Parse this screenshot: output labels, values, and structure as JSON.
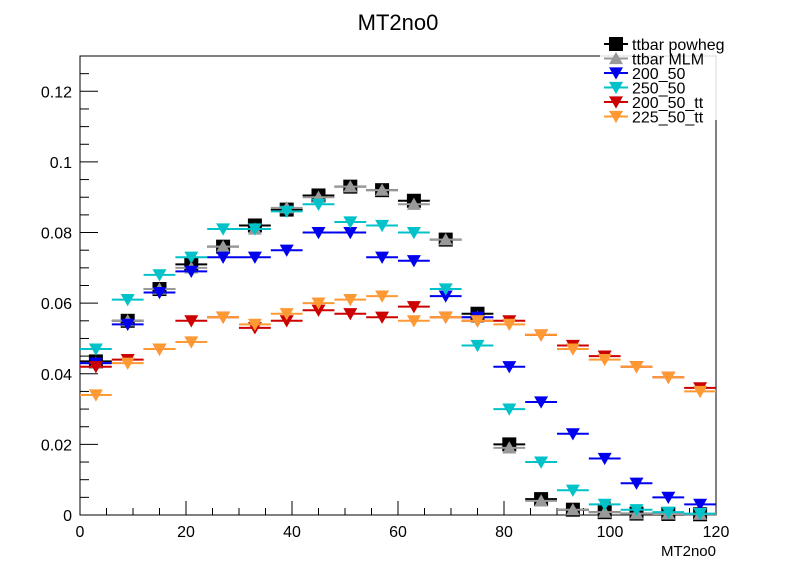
{
  "chart_data": {
    "type": "scatter",
    "title": "MT2no0",
    "xlabel": "MT2no0",
    "ylabel": "",
    "xlim": [
      0,
      120
    ],
    "ylim": [
      0,
      0.13
    ],
    "x_ticks": [
      0,
      20,
      40,
      60,
      80,
      100,
      120
    ],
    "y_ticks": [
      0,
      0.02,
      0.04,
      0.06,
      0.08,
      0.1,
      0.12
    ],
    "x_tick_labels": [
      "0",
      "20",
      "40",
      "60",
      "80",
      "100",
      "120"
    ],
    "y_tick_labels": [
      "0",
      "0.02",
      "0.04",
      "0.06",
      "0.08",
      "0.1",
      "0.12"
    ],
    "bin_width": 6,
    "x": [
      3,
      9,
      15,
      21,
      27,
      33,
      39,
      45,
      51,
      57,
      63,
      69,
      75,
      81,
      87,
      93,
      99,
      105,
      111,
      117
    ],
    "legend_position": "top-right",
    "series": [
      {
        "name": "ttbar powheg",
        "marker": "square",
        "color": "#000000",
        "values": [
          0.0435,
          0.055,
          0.064,
          0.071,
          0.076,
          0.082,
          0.0865,
          0.0905,
          0.093,
          0.092,
          0.089,
          0.078,
          0.057,
          0.02,
          0.0045,
          0.0015,
          0.0008,
          0.0004,
          0.0003,
          0.0002
        ]
      },
      {
        "name": "ttbar MLM",
        "marker": "triangle-up",
        "color": "#999999",
        "values": [
          0.043,
          0.055,
          0.064,
          0.07,
          0.076,
          0.081,
          0.087,
          0.09,
          0.093,
          0.092,
          0.088,
          0.078,
          0.056,
          0.019,
          0.004,
          0.0015,
          0.0008,
          0.0004,
          0.0003,
          0.0002
        ]
      },
      {
        "name": "200_50",
        "marker": "triangle-down",
        "color": "#0000ee",
        "values": [
          0.043,
          0.054,
          0.063,
          0.069,
          0.073,
          0.073,
          0.075,
          0.08,
          0.08,
          0.073,
          0.072,
          0.062,
          0.056,
          0.042,
          0.032,
          0.023,
          0.016,
          0.009,
          0.005,
          0.003
        ]
      },
      {
        "name": "250_50",
        "marker": "triangle-down",
        "color": "#00c2c8",
        "values": [
          0.047,
          0.061,
          0.068,
          0.073,
          0.081,
          0.081,
          0.086,
          0.088,
          0.083,
          0.082,
          0.08,
          0.064,
          0.048,
          0.03,
          0.015,
          0.007,
          0.003,
          0.0015,
          0.0008,
          0.0004
        ]
      },
      {
        "name": "200_50_tt",
        "marker": "triangle-down",
        "color": "#cc0000",
        "values": [
          0.042,
          0.044,
          0.047,
          0.055,
          0.056,
          0.053,
          0.055,
          0.058,
          0.057,
          0.056,
          0.059,
          0.056,
          0.055,
          0.055,
          0.051,
          0.048,
          0.045,
          0.042,
          0.039,
          0.036
        ]
      },
      {
        "name": "225_50_tt",
        "marker": "triangle-down",
        "color": "#ff9933",
        "values": [
          0.034,
          0.043,
          0.047,
          0.049,
          0.056,
          0.054,
          0.057,
          0.06,
          0.061,
          0.062,
          0.055,
          0.056,
          0.055,
          0.054,
          0.051,
          0.047,
          0.044,
          0.042,
          0.039,
          0.035
        ]
      }
    ]
  }
}
